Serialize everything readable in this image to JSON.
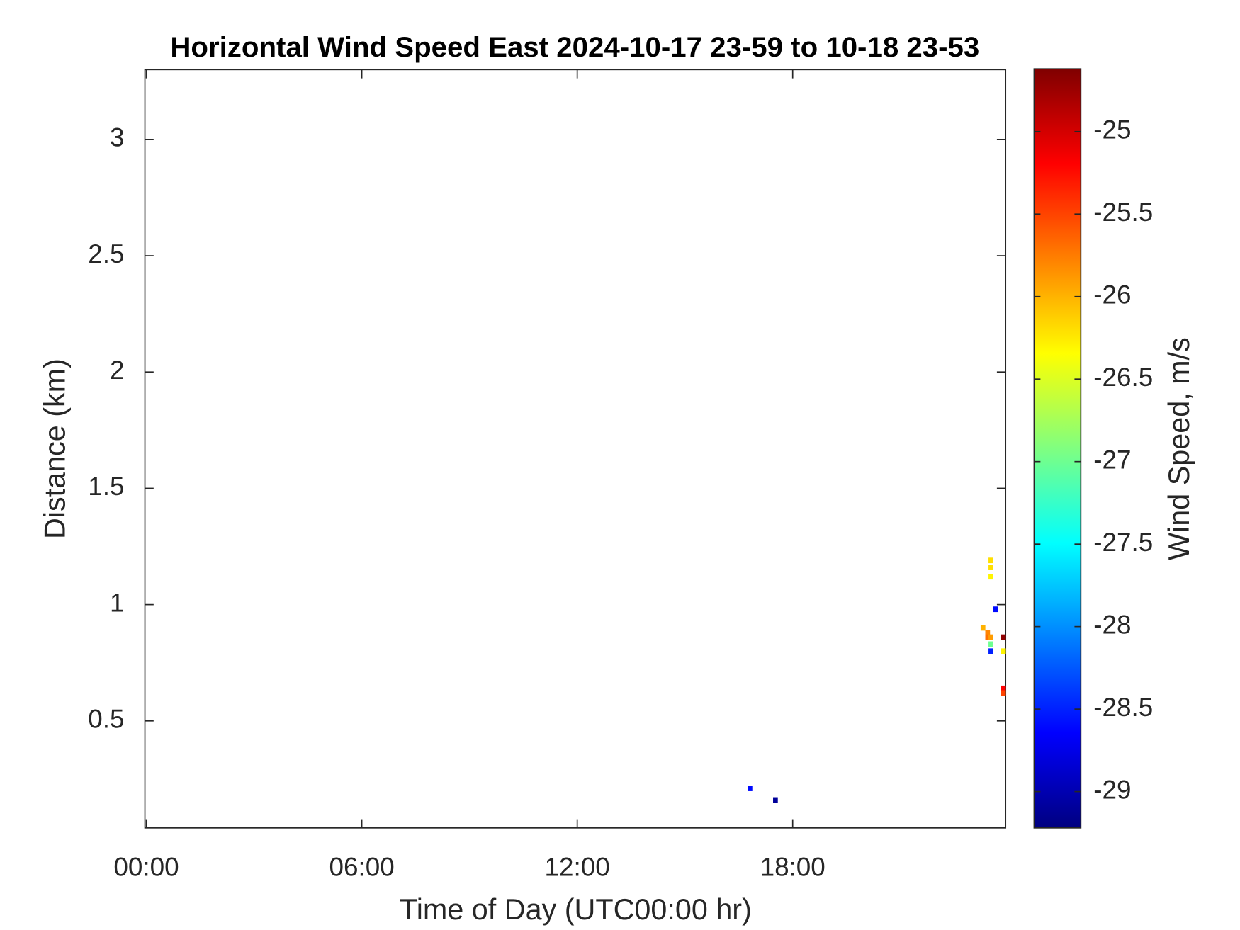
{
  "chart_data": {
    "type": "heatmap",
    "title": "Horizontal Wind Speed East 2024-10-17 23-59 to 10-18 23-53",
    "x_label": "Time of Day (UTC00:00 hr)",
    "y_label": "Distance (km)",
    "colorbar_label": "Wind Speed, m/s",
    "colormap": "jet",
    "xlim": [
      -0.04,
      23.93
    ],
    "xticks": [
      {
        "value": 0,
        "label": "00:00"
      },
      {
        "value": 6,
        "label": "06:00"
      },
      {
        "value": 12,
        "label": "12:00"
      },
      {
        "value": 18,
        "label": "18:00"
      }
    ],
    "ylim": [
      0.04,
      3.3
    ],
    "yticks": [
      0.5,
      1,
      1.5,
      2,
      2.5,
      3
    ],
    "clim": [
      -29.22,
      -24.62
    ],
    "cticks": [
      -29,
      -28.5,
      -28,
      -27.5,
      -27,
      -26.5,
      -26,
      -25.5,
      -25
    ],
    "x": [
      16.81,
      17.52,
      23.52,
      23.52,
      23.52,
      23.65,
      23.3,
      23.43,
      23.43,
      23.52,
      23.52,
      23.52,
      23.87,
      23.87,
      23.87,
      23.87
    ],
    "y": [
      0.21,
      0.16,
      1.19,
      1.16,
      1.12,
      0.98,
      0.9,
      0.88,
      0.86,
      0.86,
      0.83,
      0.8,
      0.86,
      0.8,
      0.64,
      0.62
    ],
    "values": [
      -28.6,
      -29.1,
      -26.2,
      -26.2,
      -26.3,
      -28.6,
      -26.0,
      -25.8,
      -25.7,
      -25.9,
      -27.0,
      -28.5,
      -24.7,
      -26.3,
      -25.2,
      -25.5
    ]
  }
}
